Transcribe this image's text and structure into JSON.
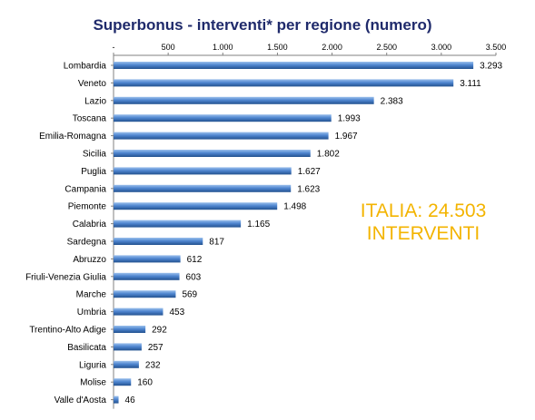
{
  "chart_data": {
    "type": "bar",
    "orientation": "horizontal",
    "title": "Superbonus - interventi* per regione (numero)",
    "categories": [
      "Lombardia",
      "Veneto",
      "Lazio",
      "Toscana",
      "Emilia-Romagna",
      "Sicilia",
      "Puglia",
      "Campania",
      "Piemonte",
      "Calabria",
      "Sardegna",
      "Abruzzo",
      "Friuli-Venezia Giulia",
      "Marche",
      "Umbria",
      "Trentino-Alto Adige",
      "Basilicata",
      "Liguria",
      "Molise",
      "Valle d'Aosta"
    ],
    "values": [
      3293,
      3111,
      2383,
      1993,
      1967,
      1802,
      1627,
      1623,
      1498,
      1165,
      817,
      612,
      603,
      569,
      453,
      292,
      257,
      232,
      160,
      46
    ],
    "value_labels": [
      "3.293",
      "3.111",
      "2.383",
      "1.993",
      "1.967",
      "1.802",
      "1.627",
      "1.623",
      "1.498",
      "1.165",
      "817",
      "612",
      "603",
      "569",
      "453",
      "292",
      "257",
      "232",
      "160",
      "46"
    ],
    "xlim": [
      0,
      3500
    ],
    "x_ticks": [
      0,
      500,
      1000,
      1500,
      2000,
      2500,
      3000,
      3500
    ],
    "x_tick_labels": [
      "-",
      "500",
      "1.000",
      "1.500",
      "2.000",
      "2.500",
      "3.000",
      "3.500"
    ],
    "x_axis_position": "top",
    "grid": false,
    "legend": "none",
    "colors": {
      "bar_light": "#9cc0ec",
      "bar_mid": "#4f86d0",
      "bar_dark": "#22518f",
      "title": "#1f2a6b",
      "annotation": "#f3b400"
    }
  },
  "annotation": {
    "line1": "ITALIA: 24.503",
    "line2": "INTERVENTI"
  }
}
